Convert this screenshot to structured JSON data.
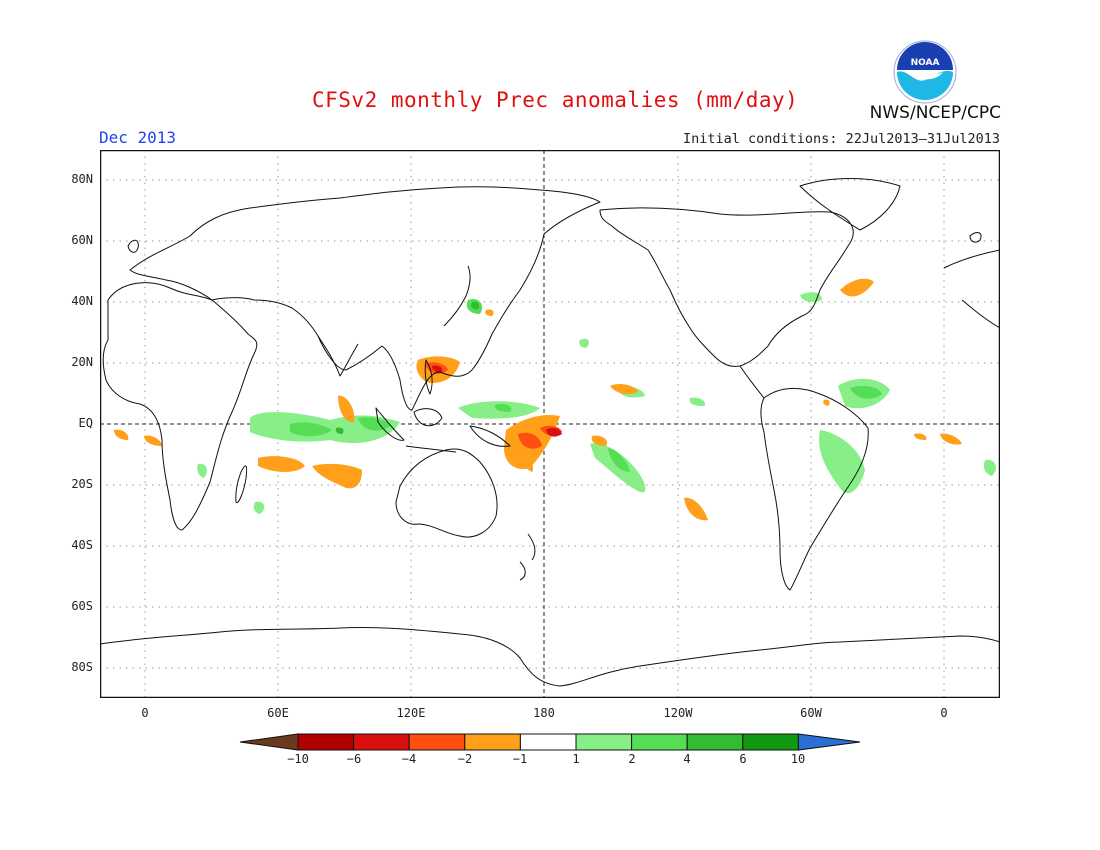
{
  "header": {
    "title": "CFSv2 monthly Prec anomalies (mm/day)",
    "month": "Dec 2013",
    "initial_conditions": "Initial conditions: 22Jul2013–31Jul2013",
    "org": "NWS/NCEP/CPC",
    "logo_text": "NOAA"
  },
  "map": {
    "lat_labels": [
      "80N",
      "60N",
      "40N",
      "20N",
      "EQ",
      "20S",
      "40S",
      "60S",
      "80S"
    ],
    "lon_labels": [
      "0",
      "60E",
      "120E",
      "180",
      "120W",
      "60W",
      "0"
    ]
  },
  "colorbar": {
    "labels": [
      "−10",
      "−6",
      "−4",
      "−2",
      "−1",
      "1",
      "2",
      "4",
      "6",
      "10"
    ],
    "colors": [
      "#6b3a1e",
      "#b00000",
      "#d81010",
      "#ff4f10",
      "#ff9f1a",
      "#ffffff",
      "#88ee88",
      "#55dd55",
      "#33bb33",
      "#129912",
      "#2a6fd6"
    ]
  },
  "colors": {
    "title": "#e01010",
    "month": "#2244ee",
    "dry_light": "#ff9f1a",
    "dry_strong": "#ff4f10",
    "dry_extreme": "#d81010",
    "wet_light": "#88ee88",
    "wet_strong": "#55dd55",
    "wet_extreme": "#33bb33"
  }
}
